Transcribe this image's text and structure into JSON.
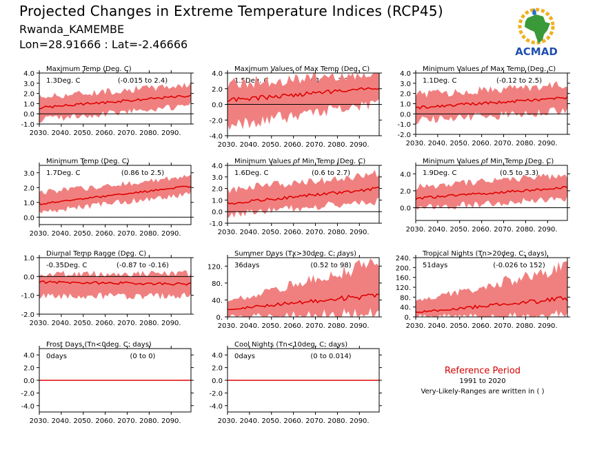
{
  "header": {
    "title": "Projected Changes in Extreme Temperature Indices (RCP45)",
    "location": "Rwanda_KAMEMBE",
    "coordinates": "Lon=28.91666 : Lat=-2.46666"
  },
  "logo": {
    "text": "ACMAD",
    "icon": "africa-map-sun-logo"
  },
  "colors": {
    "median_line": "#e00000",
    "range_band": "#f08080",
    "zero_line": "#000000"
  },
  "reference": {
    "title": "Reference Period",
    "years": "1991 to 2020",
    "note": "Very-Likely-Ranges are written in ( )"
  },
  "chart_data": [
    {
      "type": "area",
      "title": "Maximum Temp (Deg. C)",
      "summary": "1.3Deg. C",
      "range": "(-0.015 to 2.4)",
      "x": [
        2030,
        2099
      ],
      "xticks": [
        "2030.",
        "2040.",
        "2050.",
        "2060.",
        "2070.",
        "2080.",
        "2090."
      ],
      "ylim": [
        -1.0,
        4.0
      ],
      "yticks": [
        "-1.0",
        "0.0",
        "1.0",
        "2.0",
        "3.0",
        "4.0"
      ],
      "median_start": 0.6,
      "median_end": 1.8,
      "band_low_start": -0.5,
      "band_low_end": 0.9,
      "band_high_start": 1.6,
      "band_high_end": 2.8
    },
    {
      "type": "area",
      "title": "Maximum Values of Max Temp (Deg. C)",
      "summary": "1.5Deg. C",
      "range": "(-1.2 to 3.2)",
      "x": [
        2030,
        2099
      ],
      "xticks": [
        "2030.",
        "2040.",
        "2050.",
        "2060.",
        "2070.",
        "2080.",
        "2090."
      ],
      "ylim": [
        -4.0,
        4.0
      ],
      "yticks": [
        "-4.0",
        "-2.0",
        "0.0",
        "2.0",
        "4.0"
      ],
      "median_start": 0.5,
      "median_end": 2.1,
      "band_low_start": -2.5,
      "band_low_end": 0.2,
      "band_high_start": 2.5,
      "band_high_end": 3.8
    },
    {
      "type": "area",
      "title": "Minimum Values of Max Temp (Deg. C)",
      "summary": "1.1Deg. C",
      "range": "(-0.12 to 2.5)",
      "x": [
        2030,
        2099
      ],
      "xticks": [
        "2030.",
        "2040.",
        "2050.",
        "2060.",
        "2070.",
        "2080.",
        "2090."
      ],
      "ylim": [
        -2.0,
        4.0
      ],
      "yticks": [
        "-2.0",
        "-1.0",
        "0.0",
        "1.0",
        "2.0",
        "3.0",
        "4.0"
      ],
      "median_start": 0.6,
      "median_end": 1.6,
      "band_low_start": -0.6,
      "band_low_end": 0.4,
      "band_high_start": 1.8,
      "band_high_end": 2.8
    },
    {
      "type": "area",
      "title": "Minimum Temp (Deg. C)",
      "summary": "1.7Deg. C",
      "range": "(0.86 to 2.5)",
      "x": [
        2030,
        2099
      ],
      "xticks": [
        "2030.",
        "2040.",
        "2050.",
        "2060.",
        "2070.",
        "2080.",
        "2090."
      ],
      "ylim": [
        -0.5,
        3.5
      ],
      "yticks": [
        "0.0",
        "1.0",
        "2.0",
        "3.0"
      ],
      "median_start": 0.9,
      "median_end": 2.1,
      "band_low_start": 0.4,
      "band_low_end": 1.6,
      "band_high_start": 1.6,
      "band_high_end": 2.7
    },
    {
      "type": "area",
      "title": "Minimum Values of Min Temp (Deg. C)",
      "summary": "1.6Deg. C",
      "range": "(0.6 to 2.7)",
      "x": [
        2030,
        2099
      ],
      "xticks": [
        "2030.",
        "2040.",
        "2050.",
        "2060.",
        "2070.",
        "2080.",
        "2090."
      ],
      "ylim": [
        -1.0,
        4.0
      ],
      "yticks": [
        "-1.0",
        "0.0",
        "1.0",
        "2.0",
        "3.0",
        "4.0"
      ],
      "median_start": 0.7,
      "median_end": 2.0,
      "band_low_start": -0.2,
      "band_low_end": 1.0,
      "band_high_start": 1.8,
      "band_high_end": 3.2
    },
    {
      "type": "area",
      "title": "Minimum Values of Min Temp (Deg. C)",
      "summary": "1.9Deg. C",
      "range": "(0.5 to 3.3)",
      "x": [
        2030,
        2099
      ],
      "xticks": [
        "2030.",
        "2040.",
        "2050.",
        "2060.",
        "2070.",
        "2080.",
        "2090."
      ],
      "ylim": [
        -1.5,
        5.0
      ],
      "yticks": [
        "0.0",
        "2.0",
        "4.0"
      ],
      "median_start": 1.1,
      "median_end": 2.4,
      "band_low_start": 0.0,
      "band_low_end": 1.2,
      "band_high_start": 2.4,
      "band_high_end": 3.8
    },
    {
      "type": "area",
      "title": "Diurnal Temp Range (Deg. C)",
      "summary": "-0.35Deg. C",
      "range": "(-0.87 to -0.16)",
      "x": [
        2030,
        2099
      ],
      "xticks": [
        "2030.",
        "2040.",
        "2050.",
        "2060.",
        "2070.",
        "2080.",
        "2090."
      ],
      "ylim": [
        -2.0,
        1.0
      ],
      "yticks": [
        "-2.0",
        "-1.0",
        "0.0",
        "1.0"
      ],
      "median_start": -0.3,
      "median_end": -0.4,
      "band_low_start": -1.0,
      "band_low_end": -1.0,
      "band_high_start": 0.1,
      "band_high_end": 0.1
    },
    {
      "type": "area",
      "title": "Summer Days (Tx>30deg. C; days)",
      "summary": "36days",
      "range": "(0.52 to 98)",
      "x": [
        2030,
        2099
      ],
      "xticks": [
        "2030.",
        "2040.",
        "2050.",
        "2060.",
        "2070.",
        "2080.",
        "2090."
      ],
      "ylim": [
        0,
        140
      ],
      "yticks": [
        "0.",
        "40.",
        "80.",
        "120."
      ],
      "median_start": 18,
      "median_end": 52,
      "band_low_start": 2,
      "band_low_end": 8,
      "band_high_start": 35,
      "band_high_end": 125
    },
    {
      "type": "area",
      "title": "Tropical Nights (Tn>20deg. C; days)",
      "summary": "51days",
      "range": "(-0.026 to 152)",
      "x": [
        2030,
        2099
      ],
      "xticks": [
        "2030.",
        "2040.",
        "2050.",
        "2060.",
        "2070.",
        "2080.",
        "2090."
      ],
      "ylim": [
        0,
        240
      ],
      "yticks": [
        "0.",
        "40.",
        "80.",
        "120.",
        "160.",
        "200.",
        "240."
      ],
      "median_start": 18,
      "median_end": 75,
      "band_low_start": 2,
      "band_low_end": 8,
      "band_high_start": 60,
      "band_high_end": 195
    },
    {
      "type": "area",
      "title": "Frost Days (Tn<0deg. C; days)",
      "summary": "0days",
      "range": "(0 to 0)",
      "x": [
        2030,
        2099
      ],
      "xticks": [
        "2030.",
        "2040.",
        "2050.",
        "2060.",
        "2070.",
        "2080.",
        "2090."
      ],
      "ylim": [
        -5.0,
        5.0
      ],
      "yticks": [
        "-4.0",
        "-2.0",
        "0.0",
        "2.0",
        "4.0"
      ],
      "median_start": 0,
      "median_end": 0,
      "band_low_start": 0,
      "band_low_end": 0,
      "band_high_start": 0,
      "band_high_end": 0
    },
    {
      "type": "area",
      "title": "Cool Nights (Tn<10deg. C; days)",
      "summary": "0days",
      "range": "(0 to 0.014)",
      "x": [
        2030,
        2099
      ],
      "xticks": [
        "2030.",
        "2040.",
        "2050.",
        "2060.",
        "2070.",
        "2080.",
        "2090."
      ],
      "ylim": [
        -5.0,
        5.0
      ],
      "yticks": [
        "-4.0",
        "-2.0",
        "0.0",
        "2.0",
        "4.0"
      ],
      "median_start": 0,
      "median_end": 0,
      "band_low_start": 0,
      "band_low_end": 0.05,
      "band_high_start": 0,
      "band_high_end": 0.05
    }
  ]
}
